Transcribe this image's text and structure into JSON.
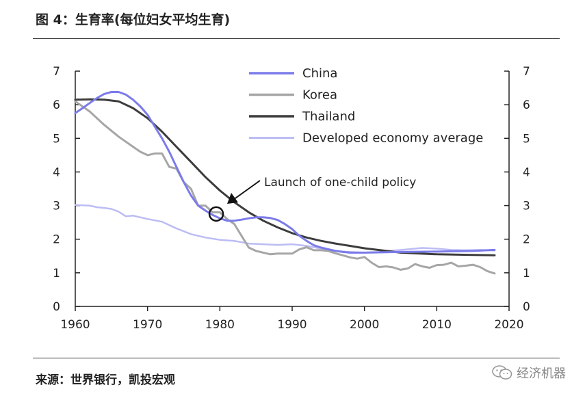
{
  "figure": {
    "title": "图 4：生育率(每位妇女平均生育)",
    "source": "来源：世界银行，凯投宏观",
    "watermark": "经济机器"
  },
  "chart_data": {
    "type": "line",
    "xlim": [
      1960,
      2020
    ],
    "ylim": [
      0,
      7
    ],
    "x_ticks": [
      1960,
      1970,
      1980,
      1990,
      2000,
      2010,
      2020
    ],
    "y_ticks": [
      0,
      1,
      2,
      3,
      4,
      5,
      6,
      7
    ],
    "y_axis_sides": [
      "left",
      "right"
    ],
    "grid": false,
    "legend_position": "top-right",
    "series": [
      {
        "name": "China",
        "color": "#7b7bea",
        "width": 3,
        "x": [
          1960,
          1961,
          1962,
          1963,
          1964,
          1965,
          1966,
          1967,
          1968,
          1969,
          1970,
          1971,
          1972,
          1973,
          1974,
          1975,
          1976,
          1977,
          1978,
          1979,
          1980,
          1981,
          1982,
          1983,
          1984,
          1985,
          1986,
          1987,
          1988,
          1989,
          1990,
          1991,
          1992,
          1993,
          1994,
          1995,
          1996,
          1997,
          1998,
          1999,
          2000,
          2005,
          2010,
          2015,
          2018
        ],
        "y": [
          5.75,
          5.9,
          6.05,
          6.2,
          6.32,
          6.38,
          6.38,
          6.3,
          6.15,
          5.95,
          5.7,
          5.35,
          5.0,
          4.6,
          4.15,
          3.7,
          3.3,
          3.0,
          2.85,
          2.72,
          2.62,
          2.55,
          2.55,
          2.58,
          2.62,
          2.65,
          2.65,
          2.63,
          2.57,
          2.45,
          2.3,
          2.1,
          1.95,
          1.82,
          1.75,
          1.7,
          1.65,
          1.62,
          1.6,
          1.6,
          1.6,
          1.62,
          1.63,
          1.65,
          1.68
        ]
      },
      {
        "name": "Korea",
        "color": "#a6a6a6",
        "width": 3,
        "x": [
          1960,
          1962,
          1964,
          1966,
          1968,
          1969,
          1970,
          1971,
          1972,
          1973,
          1974,
          1975,
          1976,
          1977,
          1978,
          1979,
          1980,
          1981,
          1982,
          1983,
          1984,
          1985,
          1986,
          1987,
          1988,
          1989,
          1990,
          1991,
          1992,
          1993,
          1994,
          1995,
          1996,
          1997,
          1998,
          1999,
          2000,
          2001,
          2002,
          2003,
          2004,
          2005,
          2006,
          2007,
          2008,
          2009,
          2010,
          2011,
          2012,
          2013,
          2014,
          2015,
          2016,
          2017,
          2018
        ],
        "y": [
          6.1,
          5.8,
          5.4,
          5.05,
          4.75,
          4.6,
          4.5,
          4.55,
          4.55,
          4.15,
          4.1,
          3.7,
          3.5,
          3.0,
          3.0,
          2.8,
          2.8,
          2.6,
          2.45,
          2.1,
          1.75,
          1.65,
          1.6,
          1.55,
          1.57,
          1.57,
          1.57,
          1.7,
          1.76,
          1.67,
          1.67,
          1.65,
          1.58,
          1.52,
          1.46,
          1.42,
          1.47,
          1.3,
          1.17,
          1.19,
          1.16,
          1.09,
          1.13,
          1.26,
          1.19,
          1.15,
          1.23,
          1.24,
          1.3,
          1.19,
          1.21,
          1.24,
          1.17,
          1.05,
          0.98
        ]
      },
      {
        "name": "Thailand",
        "color": "#3c3c3c",
        "width": 3,
        "x": [
          1960,
          1962,
          1964,
          1966,
          1968,
          1970,
          1972,
          1974,
          1976,
          1978,
          1980,
          1982,
          1984,
          1986,
          1988,
          1990,
          1992,
          1994,
          1996,
          1998,
          2000,
          2005,
          2010,
          2015,
          2018
        ],
        "y": [
          6.15,
          6.16,
          6.15,
          6.1,
          5.9,
          5.6,
          5.2,
          4.75,
          4.3,
          3.85,
          3.45,
          3.1,
          2.8,
          2.55,
          2.35,
          2.18,
          2.05,
          1.95,
          1.87,
          1.8,
          1.73,
          1.6,
          1.55,
          1.53,
          1.52
        ]
      },
      {
        "name": "Developed economy average",
        "color": "#bcbcf5",
        "width": 2.5,
        "x": [
          1960,
          1962,
          1963,
          1964,
          1965,
          1966,
          1967,
          1968,
          1970,
          1972,
          1974,
          1976,
          1978,
          1980,
          1982,
          1984,
          1986,
          1988,
          1990,
          1992,
          1994,
          1996,
          1998,
          2000,
          2002,
          2004,
          2006,
          2008,
          2010,
          2012,
          2014,
          2016,
          2018
        ],
        "y": [
          3.02,
          3.0,
          2.95,
          2.93,
          2.9,
          2.82,
          2.68,
          2.7,
          2.6,
          2.52,
          2.32,
          2.15,
          2.05,
          1.98,
          1.95,
          1.87,
          1.85,
          1.83,
          1.85,
          1.8,
          1.72,
          1.65,
          1.62,
          1.6,
          1.62,
          1.66,
          1.7,
          1.74,
          1.72,
          1.68,
          1.67,
          1.68,
          1.66
        ]
      }
    ],
    "annotation": {
      "text": "Launch of one-child policy",
      "x": 1979.5,
      "y": 2.75
    }
  }
}
